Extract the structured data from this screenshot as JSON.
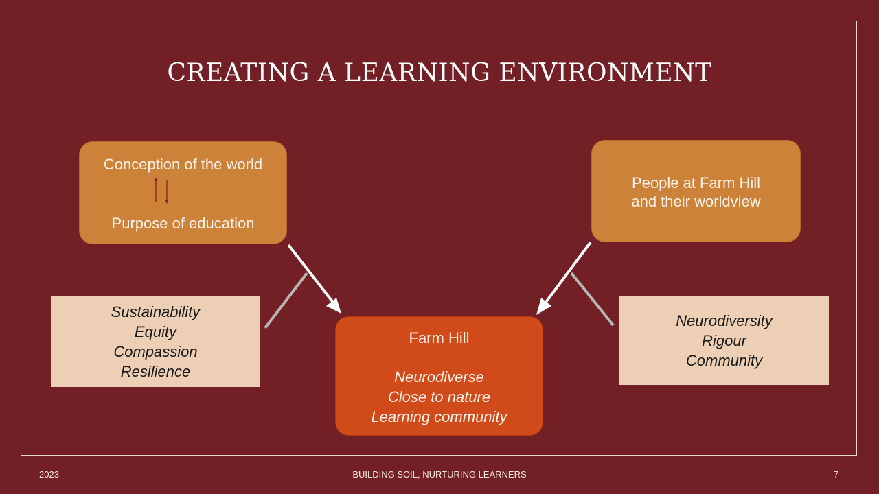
{
  "slide": {
    "title": "CREATING A LEARNING ENVIRONMENT"
  },
  "world_box": {
    "top_label": "Conception of the world",
    "bottom_label": "Purpose of education"
  },
  "people_box": {
    "line1": "People at Farm Hill",
    "line2": "and their worldview"
  },
  "farm_box": {
    "title": "Farm Hill",
    "items": [
      "Neurodiverse",
      "Close to nature",
      "Learning community"
    ]
  },
  "left_values": {
    "items": [
      "Sustainability",
      "Equity",
      "Compassion",
      "Resilience"
    ]
  },
  "right_values": {
    "items": [
      "Neurodiversity",
      "Rigour",
      "Community"
    ]
  },
  "footer": {
    "year": "2023",
    "center": "BUILDING SOIL, NURTURING LEARNERS",
    "page": "7"
  },
  "colors": {
    "background": "#722026",
    "top_boxes": "#cd823a",
    "farm_box": "#d14a19",
    "value_boxes": "#eccfb4"
  }
}
